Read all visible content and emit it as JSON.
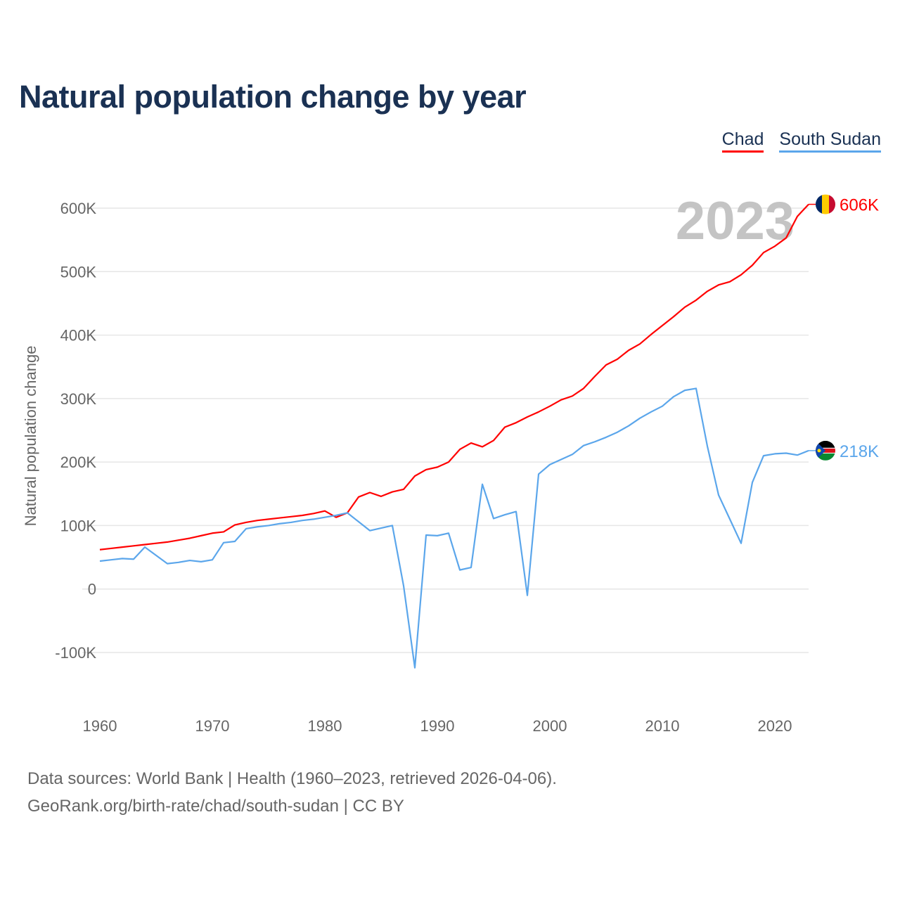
{
  "title": "Natural population change by year",
  "legend": [
    "Chad",
    "South Sudan"
  ],
  "source_line1": "Data sources: World Bank | Health (1960–2023, retrieved 2026-04-06).",
  "source_line2": "GeoRank.org/birth-rate/chad/south-sudan | CC BY",
  "year_watermark": "2023",
  "chart_data": {
    "type": "line",
    "title": "Natural population change by year",
    "xlabel": "",
    "ylabel": "Natural population change",
    "xlim": [
      1960,
      2023
    ],
    "ylim": [
      -100000,
      600000
    ],
    "x_ticks": [
      "1960",
      "1970",
      "1980",
      "1990",
      "2000",
      "2010",
      "2020"
    ],
    "y_ticks": [
      {
        "v": 600000,
        "label": "600K"
      },
      {
        "v": 500000,
        "label": "500K"
      },
      {
        "v": 400000,
        "label": "400K"
      },
      {
        "v": 300000,
        "label": "300K"
      },
      {
        "v": 200000,
        "label": "200K"
      },
      {
        "v": 100000,
        "label": "100K"
      },
      {
        "v": 0,
        "label": "0"
      },
      {
        "v": -100000,
        "label": "-100K"
      }
    ],
    "grid": true,
    "legend_position": "top-right",
    "x_start": 1960,
    "series": [
      {
        "name": "Chad",
        "color": "#ff0000",
        "end_label": "606K",
        "values_k": [
          62,
          64,
          66,
          68,
          70,
          72,
          74,
          77,
          80,
          84,
          88,
          90,
          101,
          105,
          108,
          110,
          112,
          114,
          116,
          119,
          123,
          113,
          120,
          145,
          152,
          146,
          153,
          157,
          178,
          188,
          192,
          200,
          220,
          230,
          224,
          234,
          255,
          262,
          271,
          279,
          288,
          298,
          304,
          316,
          335,
          353,
          362,
          376,
          386,
          401,
          415,
          429,
          444,
          455,
          469,
          479,
          484,
          495,
          510,
          530,
          540,
          553,
          587,
          606
        ]
      },
      {
        "name": "South Sudan",
        "color": "#5ba6eb",
        "end_label": "218K",
        "values_k": [
          44,
          46,
          48,
          47,
          66,
          53,
          40,
          42,
          45,
          43,
          46,
          73,
          75,
          95,
          98,
          100,
          103,
          105,
          108,
          110,
          113,
          116,
          120,
          106,
          92,
          96,
          100,
          5,
          -124,
          85,
          84,
          88,
          30,
          34,
          165,
          111,
          117,
          122,
          -10,
          181,
          196,
          204,
          212,
          226,
          232,
          239,
          247,
          257,
          269,
          279,
          288,
          303,
          313,
          316,
          225,
          148,
          110,
          72,
          168,
          210,
          213,
          214,
          211,
          218
        ]
      }
    ]
  }
}
